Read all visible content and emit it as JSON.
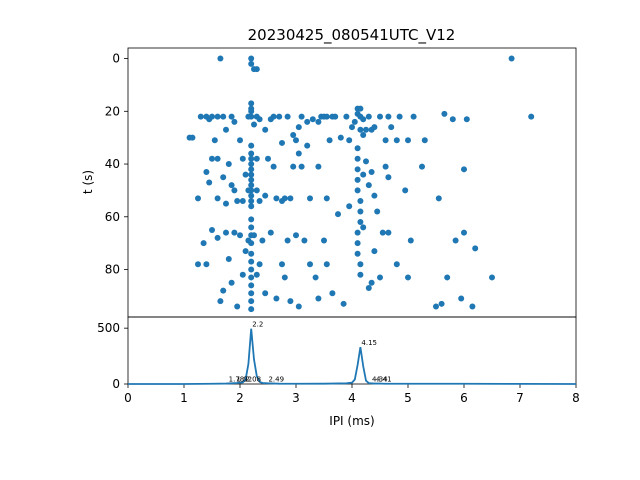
{
  "chart_data": [
    {
      "type": "scatter",
      "title": "20230425_080541UTC_V12",
      "xlabel": "",
      "ylabel": "t (s)",
      "xlim": [
        0,
        8
      ],
      "ylim": [
        98,
        -4
      ],
      "y_inverted": true,
      "y_ticks": [
        "0",
        "20",
        "40",
        "60",
        "80"
      ],
      "color": "#1f77b4",
      "points": [
        [
          1.65,
          0
        ],
        [
          2.2,
          0
        ],
        [
          2.2,
          2
        ],
        [
          2.25,
          4
        ],
        [
          2.3,
          4
        ],
        [
          6.85,
          0
        ],
        [
          1.1,
          30
        ],
        [
          1.15,
          30
        ],
        [
          1.3,
          22
        ],
        [
          1.4,
          22
        ],
        [
          1.45,
          23
        ],
        [
          1.5,
          22
        ],
        [
          1.55,
          31
        ],
        [
          1.6,
          22
        ],
        [
          1.7,
          22
        ],
        [
          1.75,
          27
        ],
        [
          1.85,
          22
        ],
        [
          1.9,
          24
        ],
        [
          2.0,
          31
        ],
        [
          2.15,
          22
        ],
        [
          2.2,
          17
        ],
        [
          2.2,
          19
        ],
        [
          2.2,
          20
        ],
        [
          2.2,
          22
        ],
        [
          2.25,
          25
        ],
        [
          2.3,
          22
        ],
        [
          2.35,
          23
        ],
        [
          2.45,
          27
        ],
        [
          2.55,
          23
        ],
        [
          2.6,
          22
        ],
        [
          2.7,
          22
        ],
        [
          2.75,
          32
        ],
        [
          2.85,
          22
        ],
        [
          2.95,
          29
        ],
        [
          3.0,
          31
        ],
        [
          3.05,
          26
        ],
        [
          3.1,
          22
        ],
        [
          3.2,
          24
        ],
        [
          3.3,
          23
        ],
        [
          3.4,
          24
        ],
        [
          3.45,
          22
        ],
        [
          3.5,
          22
        ],
        [
          3.55,
          22
        ],
        [
          3.6,
          31
        ],
        [
          3.65,
          22
        ],
        [
          3.7,
          22
        ],
        [
          3.8,
          30
        ],
        [
          3.9,
          22
        ],
        [
          3.95,
          31
        ],
        [
          4.0,
          26
        ],
        [
          4.05,
          24
        ],
        [
          4.1,
          19
        ],
        [
          4.1,
          21
        ],
        [
          4.15,
          19
        ],
        [
          4.15,
          22
        ],
        [
          4.15,
          27
        ],
        [
          4.2,
          29
        ],
        [
          4.2,
          23
        ],
        [
          4.25,
          27
        ],
        [
          4.3,
          22
        ],
        [
          4.35,
          27
        ],
        [
          4.4,
          26
        ],
        [
          4.5,
          22
        ],
        [
          4.6,
          31
        ],
        [
          4.65,
          22
        ],
        [
          4.7,
          26
        ],
        [
          4.8,
          31
        ],
        [
          4.85,
          22
        ],
        [
          5.0,
          31
        ],
        [
          5.1,
          22
        ],
        [
          5.3,
          31
        ],
        [
          5.65,
          21
        ],
        [
          5.8,
          23
        ],
        [
          6.05,
          23
        ],
        [
          7.2,
          22
        ],
        [
          1.25,
          53
        ],
        [
          1.4,
          43
        ],
        [
          1.45,
          47
        ],
        [
          1.5,
          38
        ],
        [
          1.6,
          38
        ],
        [
          1.6,
          53
        ],
        [
          1.7,
          45
        ],
        [
          1.75,
          55
        ],
        [
          1.8,
          40
        ],
        [
          1.85,
          48
        ],
        [
          1.9,
          50
        ],
        [
          1.95,
          54
        ],
        [
          2.05,
          38
        ],
        [
          2.05,
          54
        ],
        [
          2.1,
          44
        ],
        [
          2.15,
          50
        ],
        [
          2.2,
          33
        ],
        [
          2.2,
          36
        ],
        [
          2.2,
          38
        ],
        [
          2.2,
          40
        ],
        [
          2.2,
          42
        ],
        [
          2.2,
          44
        ],
        [
          2.2,
          46
        ],
        [
          2.2,
          48
        ],
        [
          2.2,
          50
        ],
        [
          2.2,
          52
        ],
        [
          2.2,
          54
        ],
        [
          2.2,
          56
        ],
        [
          2.3,
          38
        ],
        [
          2.3,
          50
        ],
        [
          2.35,
          54
        ],
        [
          2.45,
          52
        ],
        [
          2.5,
          38
        ],
        [
          2.6,
          41
        ],
        [
          2.65,
          53
        ],
        [
          2.75,
          54
        ],
        [
          2.8,
          53
        ],
        [
          2.9,
          53
        ],
        [
          2.95,
          41
        ],
        [
          3.05,
          36
        ],
        [
          3.1,
          41
        ],
        [
          3.2,
          33
        ],
        [
          3.25,
          53
        ],
        [
          3.4,
          41
        ],
        [
          3.55,
          53
        ],
        [
          3.75,
          59
        ],
        [
          3.95,
          56
        ],
        [
          4.1,
          34
        ],
        [
          4.1,
          38
        ],
        [
          4.1,
          42
        ],
        [
          4.1,
          46
        ],
        [
          4.1,
          50
        ],
        [
          4.15,
          54
        ],
        [
          4.15,
          58
        ],
        [
          4.15,
          62
        ],
        [
          4.2,
          44
        ],
        [
          4.25,
          39
        ],
        [
          4.3,
          48
        ],
        [
          4.35,
          43
        ],
        [
          4.4,
          52
        ],
        [
          4.45,
          58
        ],
        [
          4.6,
          41
        ],
        [
          4.65,
          45
        ],
        [
          4.95,
          50
        ],
        [
          5.25,
          41
        ],
        [
          5.55,
          53
        ],
        [
          6.0,
          42
        ],
        [
          1.25,
          78
        ],
        [
          1.35,
          70
        ],
        [
          1.4,
          78
        ],
        [
          1.5,
          65
        ],
        [
          1.6,
          68
        ],
        [
          1.65,
          92
        ],
        [
          1.7,
          88
        ],
        [
          1.75,
          66
        ],
        [
          1.8,
          76
        ],
        [
          1.85,
          85
        ],
        [
          1.9,
          66
        ],
        [
          1.95,
          94
        ],
        [
          2.0,
          67
        ],
        [
          2.05,
          82
        ],
        [
          2.1,
          73
        ],
        [
          2.15,
          69
        ],
        [
          2.2,
          61
        ],
        [
          2.2,
          64
        ],
        [
          2.2,
          67
        ],
        [
          2.2,
          70
        ],
        [
          2.2,
          74
        ],
        [
          2.2,
          77
        ],
        [
          2.2,
          80
        ],
        [
          2.2,
          83
        ],
        [
          2.2,
          86
        ],
        [
          2.2,
          89
        ],
        [
          2.2,
          92
        ],
        [
          2.2,
          95
        ],
        [
          2.25,
          67
        ],
        [
          2.3,
          82
        ],
        [
          2.35,
          78
        ],
        [
          2.4,
          69
        ],
        [
          2.45,
          89
        ],
        [
          2.55,
          66
        ],
        [
          2.65,
          91
        ],
        [
          2.75,
          78
        ],
        [
          2.8,
          83
        ],
        [
          2.85,
          69
        ],
        [
          2.9,
          92
        ],
        [
          3.0,
          67
        ],
        [
          3.05,
          94
        ],
        [
          3.15,
          69
        ],
        [
          3.25,
          78
        ],
        [
          3.35,
          83
        ],
        [
          3.4,
          91
        ],
        [
          3.5,
          69
        ],
        [
          3.55,
          78
        ],
        [
          3.65,
          89
        ],
        [
          3.85,
          93
        ],
        [
          4.1,
          66
        ],
        [
          4.1,
          70
        ],
        [
          4.1,
          74
        ],
        [
          4.15,
          78
        ],
        [
          4.15,
          82
        ],
        [
          4.2,
          64
        ],
        [
          4.3,
          87
        ],
        [
          4.35,
          85
        ],
        [
          4.4,
          73
        ],
        [
          4.5,
          83
        ],
        [
          4.55,
          66
        ],
        [
          4.65,
          66
        ],
        [
          4.8,
          78
        ],
        [
          5.0,
          83
        ],
        [
          5.05,
          69
        ],
        [
          5.5,
          94
        ],
        [
          5.6,
          93
        ],
        [
          5.7,
          83
        ],
        [
          5.85,
          69
        ],
        [
          5.95,
          91
        ],
        [
          6.0,
          66
        ],
        [
          6.15,
          94
        ],
        [
          6.2,
          72
        ],
        [
          6.5,
          83
        ]
      ]
    },
    {
      "type": "line",
      "xlabel": "IPI (ms)",
      "ylabel": "",
      "xlim": [
        0,
        8
      ],
      "ylim": [
        0,
        600
      ],
      "x_ticks": [
        "0",
        "1",
        "2",
        "3",
        "4",
        "5",
        "6",
        "7",
        "8"
      ],
      "y_ticks": [
        "0",
        "500"
      ],
      "color": "#1f77b4",
      "x": [
        0,
        0.5,
        1.0,
        1.5,
        1.75,
        1.85,
        1.95,
        2.05,
        2.1,
        2.15,
        2.2,
        2.25,
        2.3,
        2.35,
        2.4,
        2.5,
        2.7,
        3.0,
        3.5,
        3.9,
        4.0,
        4.05,
        4.1,
        4.15,
        4.2,
        4.25,
        4.3,
        4.4,
        4.5,
        4.6,
        5.0,
        6.0,
        7.0,
        8.0
      ],
      "y": [
        0,
        0,
        0,
        2,
        4,
        6,
        9,
        14,
        40,
        180,
        495,
        220,
        70,
        20,
        9,
        6,
        3,
        2,
        3,
        6,
        12,
        40,
        170,
        330,
        160,
        30,
        8,
        4,
        4,
        2,
        2,
        2,
        1,
        0
      ],
      "peak_labels": [
        {
          "text": "2.2",
          "x": 2.2,
          "y": 495
        },
        {
          "text": "4.15",
          "x": 4.15,
          "y": 330
        },
        {
          "text": "1.78",
          "x": 1.78,
          "y": 4
        },
        {
          "text": "1.92",
          "x": 1.92,
          "y": 4
        },
        {
          "text": "2.08",
          "x": 2.08,
          "y": 4
        },
        {
          "text": "2.49",
          "x": 2.49,
          "y": 4
        },
        {
          "text": "4.34",
          "x": 4.34,
          "y": 4
        },
        {
          "text": "4.41",
          "x": 4.41,
          "y": 4
        }
      ]
    }
  ]
}
